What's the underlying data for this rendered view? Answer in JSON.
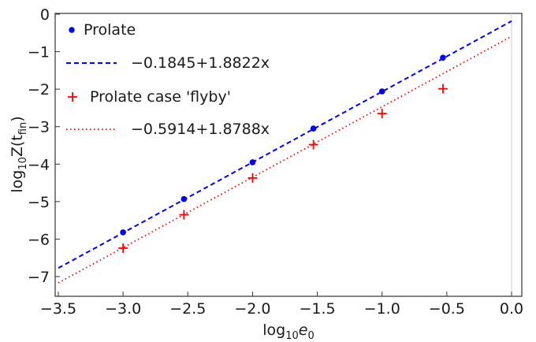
{
  "chart_data": {
    "type": "scatter",
    "xlabel": {
      "base": "log",
      "sub": "10",
      "main": "e",
      "main_sub": "0"
    },
    "ylabel": {
      "base": "log",
      "sub": "10",
      "main": "Z(t",
      "main_sub": "fin",
      "close": ")"
    },
    "xlim": [
      -3.5,
      0.0
    ],
    "ylim": [
      -7.5,
      0.0
    ],
    "x_ticks": [
      -3.5,
      -3.0,
      -2.5,
      -2.0,
      -1.5,
      -1.0,
      -0.5,
      0.0
    ],
    "x_tick_labels": [
      "−3.5",
      "−3.0",
      "−2.5",
      "−2.0",
      "−1.5",
      "−1.0",
      "−0.5",
      "0.0"
    ],
    "y_ticks": [
      0,
      -1,
      -2,
      -3,
      -4,
      -5,
      -6,
      -7
    ],
    "y_tick_labels": [
      "0",
      "−1",
      "−2",
      "−3",
      "−4",
      "−5",
      "−6",
      "−7"
    ],
    "grid": false,
    "legend_position": "top-left",
    "series": [
      {
        "name": "Prolate",
        "marker": "circle",
        "color": "#0000ff",
        "x": [
          -3.0,
          -2.53,
          -2.0,
          -1.53,
          -1.0,
          -0.53
        ],
        "y": [
          -5.82,
          -4.93,
          -3.95,
          -3.05,
          -2.06,
          -1.16
        ]
      },
      {
        "name": "−0.1845+1.8822x",
        "kind": "fit-line",
        "style": "dashed",
        "color": "#0000ff",
        "intercept": -0.1845,
        "slope": 1.8822,
        "x_range": [
          -3.5,
          0.0
        ]
      },
      {
        "name": "Prolate case 'flyby'",
        "marker": "plus",
        "color": "#ff0000",
        "x": [
          -3.0,
          -2.53,
          -2.0,
          -1.53,
          -1.0,
          -0.53
        ],
        "y": [
          -6.24,
          -5.35,
          -4.37,
          -3.48,
          -2.65,
          -1.99
        ]
      },
      {
        "name": "−0.5914+1.8788x",
        "kind": "fit-line",
        "style": "dotted",
        "color": "#ff0000",
        "intercept": -0.5914,
        "slope": 1.8788,
        "x_range": [
          -3.5,
          0.0
        ]
      }
    ]
  }
}
